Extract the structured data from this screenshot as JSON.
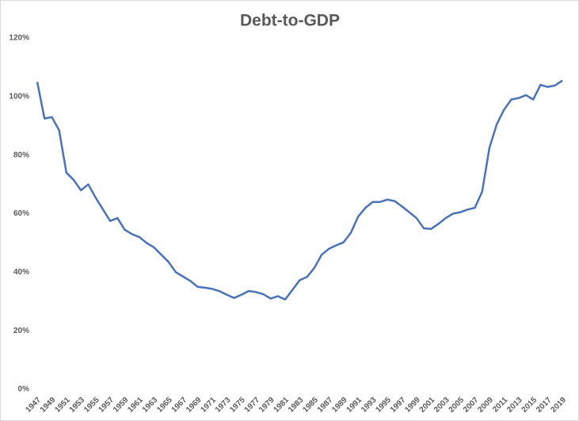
{
  "chart_data": {
    "type": "line",
    "title": "Debt-to-GDP",
    "categories": [
      "1947",
      null,
      "1949",
      null,
      "1951",
      null,
      "1953",
      null,
      "1955",
      null,
      "1957",
      null,
      "1959",
      null,
      "1961",
      null,
      "1963",
      null,
      "1965",
      null,
      "1967",
      null,
      "1969",
      null,
      "1971",
      null,
      "1973",
      null,
      "1975",
      null,
      "1977",
      null,
      "1979",
      null,
      "1981",
      null,
      "1983",
      null,
      "1985",
      null,
      "1987",
      null,
      "1989",
      null,
      "1991",
      null,
      "1993",
      null,
      "1995",
      null,
      "1997",
      null,
      "1999",
      null,
      "2001",
      null,
      "2003",
      null,
      "2005",
      null,
      "2007",
      null,
      "2009",
      null,
      "2011",
      null,
      "2013",
      null,
      "2015",
      null,
      "2017",
      null,
      "2019"
    ],
    "values": [
      105,
      92.5,
      93,
      88.5,
      74,
      71.5,
      68,
      70,
      65.5,
      61.5,
      57.5,
      58.5,
      54.5,
      53,
      52,
      50,
      48.5,
      46,
      43.5,
      40,
      38.5,
      37,
      35,
      34.7,
      34.3,
      33.5,
      32.3,
      31.2,
      32.3,
      33.6,
      33.2,
      32.5,
      31,
      31.8,
      30.7,
      34,
      37.3,
      38.4,
      41.5,
      46,
      48,
      49.2,
      50.2,
      53.5,
      59,
      62,
      64,
      64,
      64.8,
      64.3,
      62.5,
      60.5,
      58.5,
      55,
      54.8,
      56.5,
      58.5,
      60,
      60.5,
      61.4,
      62,
      67.5,
      82.5,
      90.5,
      95.5,
      99,
      99.5,
      100.5,
      99,
      104,
      103.3,
      103.8,
      105.5
    ],
    "color": "#4a72b8",
    "ylim": [
      0,
      120
    ],
    "yticks": [
      {
        "value": 0,
        "label": "0%"
      },
      {
        "value": 20,
        "label": "20%"
      },
      {
        "value": 40,
        "label": "40%"
      },
      {
        "value": 60,
        "label": "60%"
      },
      {
        "value": 80,
        "label": "80%"
      },
      {
        "value": 100,
        "label": "100%"
      },
      {
        "value": 120,
        "label": "120%"
      }
    ]
  }
}
